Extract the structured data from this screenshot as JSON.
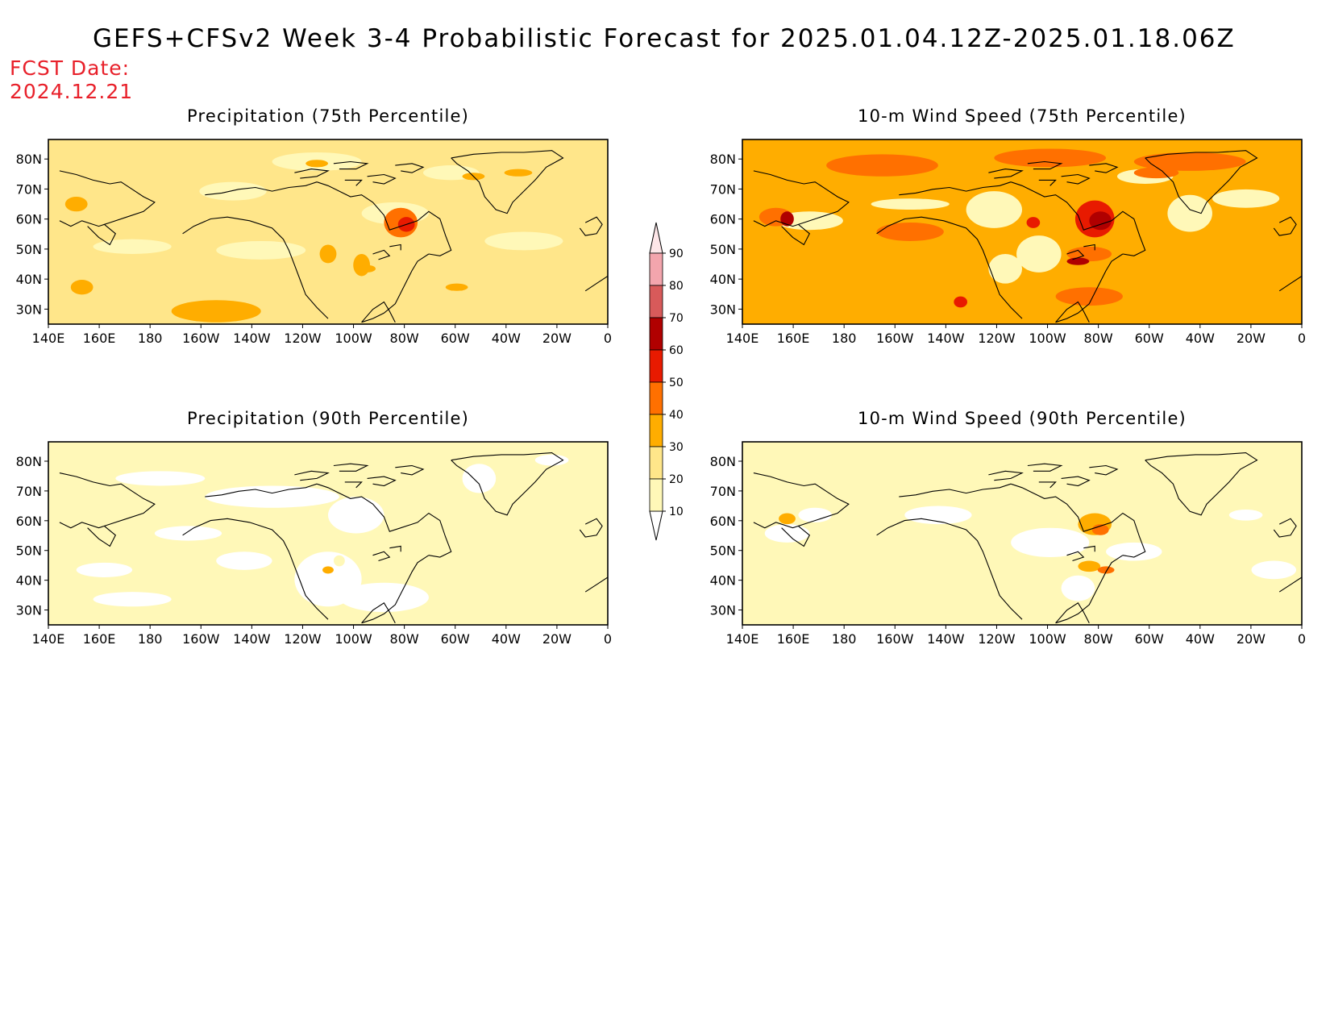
{
  "figure": {
    "title": "GEFS+CFSv2 Week 3-4 Probabilistic Forecast for 2025.01.04.12Z-2025.01.18.06Z",
    "fcst_label": "FCST Date:",
    "fcst_date": "2024.12.21"
  },
  "axes": {
    "lat_labels": [
      "80N",
      "70N",
      "60N",
      "50N",
      "40N",
      "30N"
    ],
    "lon_labels": [
      "140E",
      "160E",
      "180",
      "160W",
      "140W",
      "120W",
      "100W",
      "80W",
      "60W",
      "40W",
      "20W",
      "0"
    ]
  },
  "colorbar": {
    "labels": [
      "10",
      "20",
      "30",
      "40",
      "50",
      "60",
      "70",
      "80",
      "90"
    ],
    "colors": [
      "#fff8b8",
      "#ffe68a",
      "#ffad00",
      "#ff7000",
      "#e81a00",
      "#b00000",
      "#d85a5a",
      "#f3a5ad",
      "#fde6e8"
    ]
  },
  "panels": [
    {
      "id": "precip-75",
      "title": "Precipitation (75th Percentile)",
      "base_color": "#ffe68a"
    },
    {
      "id": "wind-75",
      "title": "10-m Wind Speed (75th Percentile)",
      "base_color": "#ffad00"
    },
    {
      "id": "precip-90",
      "title": "Precipitation (90th Percentile)",
      "base_color": "#fff8b8"
    },
    {
      "id": "wind-90",
      "title": "10-m Wind Speed (90th Percentile)",
      "base_color": "#fff8b8"
    }
  ]
}
